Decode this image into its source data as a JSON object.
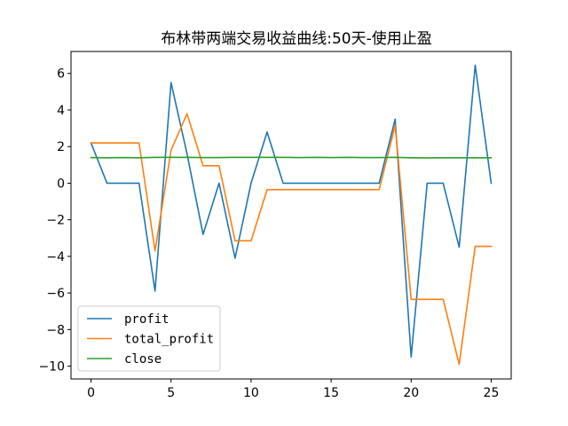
{
  "chart_data": {
    "type": "line",
    "title": "布林带两端交易收益曲线:50天-使用止盈",
    "xlabel": "",
    "ylabel": "",
    "xlim": [
      -1.25,
      26.25
    ],
    "ylim": [
      -10.7,
      7.2
    ],
    "xticks": [
      0,
      5,
      10,
      15,
      20,
      25
    ],
    "yticks": [
      -10,
      -8,
      -6,
      -4,
      -2,
      0,
      2,
      4,
      6
    ],
    "grid": false,
    "legend_position": "lower-left",
    "x": [
      0,
      1,
      2,
      3,
      4,
      5,
      6,
      7,
      8,
      9,
      10,
      11,
      12,
      13,
      14,
      15,
      16,
      17,
      18,
      19,
      20,
      21,
      22,
      23,
      24,
      25
    ],
    "series": [
      {
        "name": "profit",
        "color": "#1f77b4",
        "values": [
          2.2,
          0,
          0,
          0,
          -5.9,
          5.5,
          1.6,
          -2.8,
          0,
          -4.1,
          0,
          2.8,
          0,
          0,
          0,
          0,
          0,
          0,
          0,
          3.5,
          -9.5,
          0,
          0,
          -3.5,
          6.45,
          0
        ]
      },
      {
        "name": "total_profit",
        "color": "#ff7f0e",
        "values": [
          2.2,
          2.2,
          2.2,
          2.2,
          -3.7,
          1.8,
          3.8,
          0.95,
          0.95,
          -3.15,
          -3.15,
          -0.35,
          -0.35,
          -0.35,
          -0.35,
          -0.35,
          -0.35,
          -0.35,
          -0.35,
          3.15,
          -6.35,
          -6.35,
          -6.35,
          -9.9,
          -3.45,
          -3.45
        ]
      },
      {
        "name": "close",
        "color": "#2ca02c",
        "values": [
          1.4,
          1.39,
          1.4,
          1.39,
          1.41,
          1.41,
          1.41,
          1.4,
          1.4,
          1.41,
          1.41,
          1.41,
          1.41,
          1.4,
          1.41,
          1.4,
          1.41,
          1.4,
          1.4,
          1.41,
          1.39,
          1.38,
          1.39,
          1.39,
          1.39,
          1.39
        ]
      }
    ]
  }
}
